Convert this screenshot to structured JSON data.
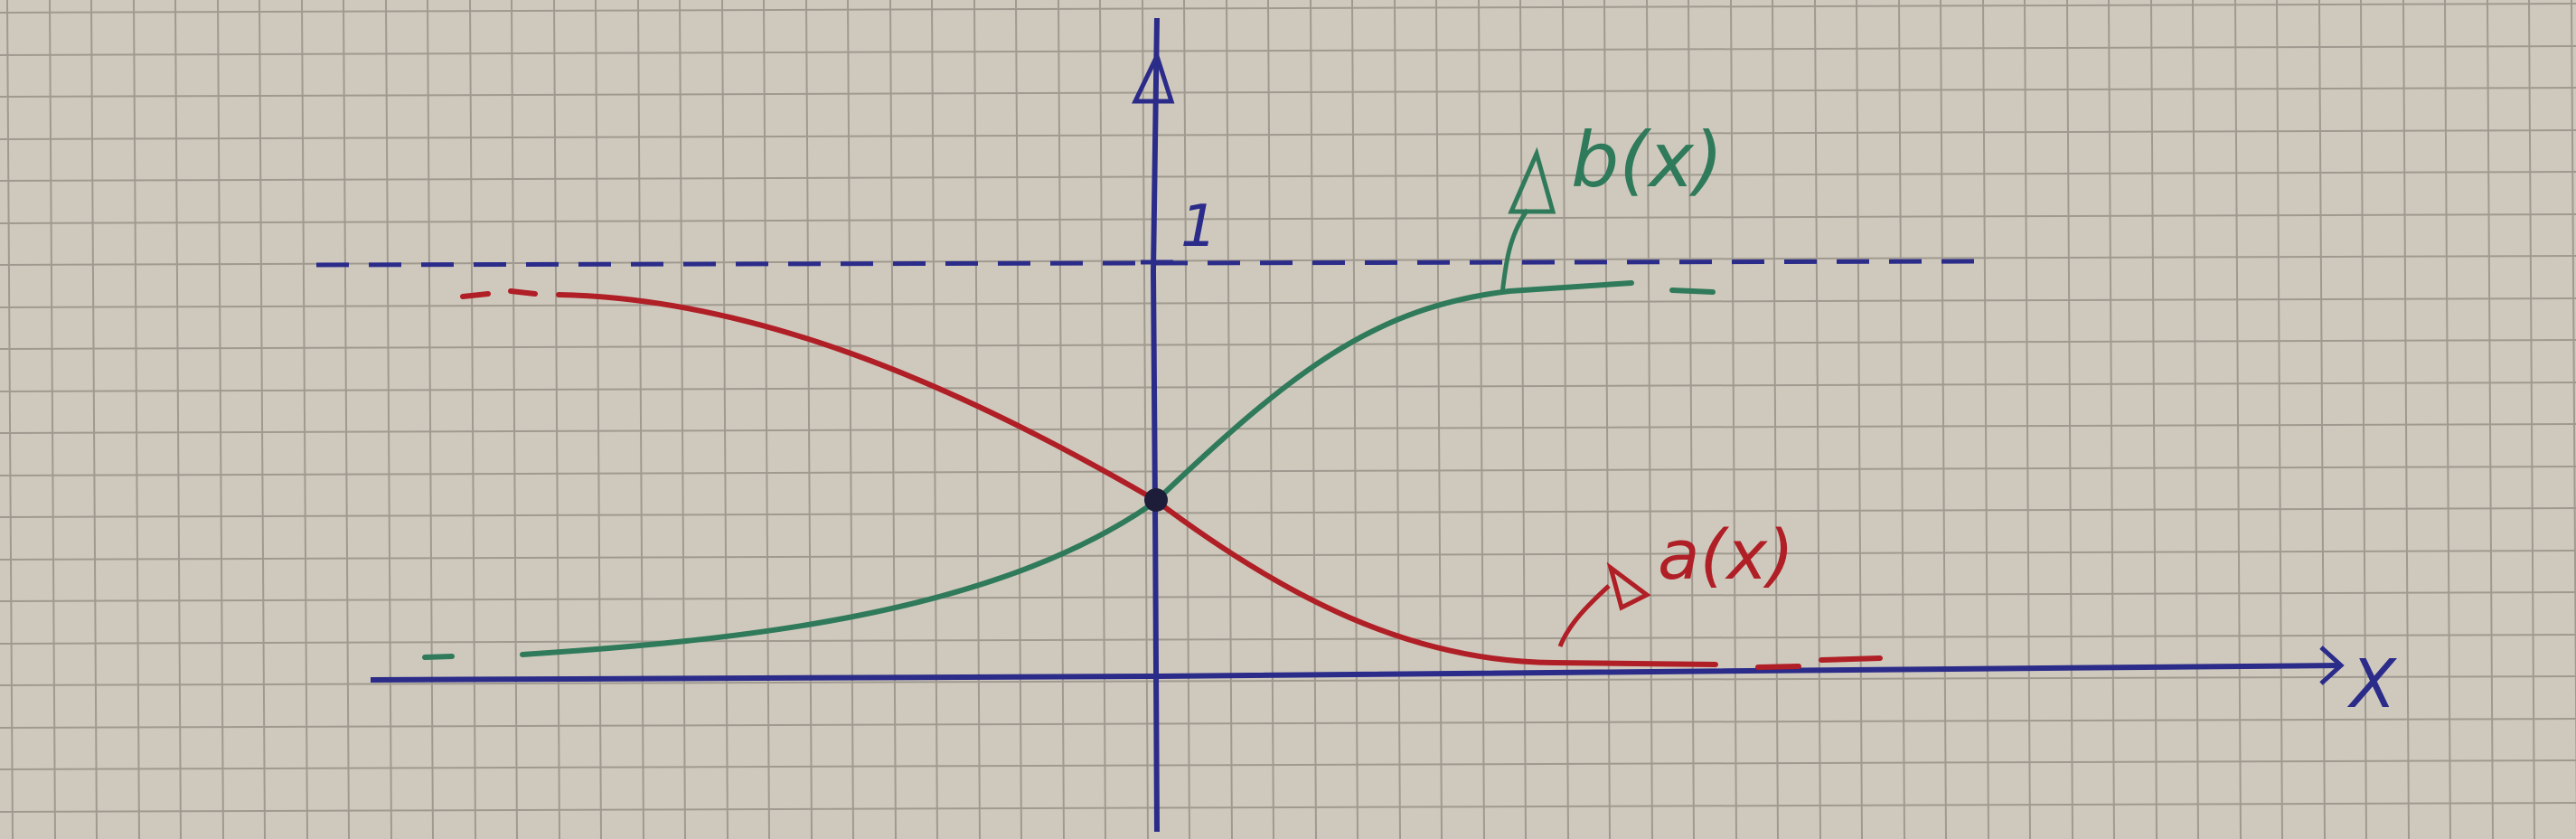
{
  "figure": {
    "x_axis_label": "X",
    "y_tick_label": "1",
    "curve_green_label": "b(x)",
    "curve_red_label": "a(x)"
  },
  "colors": {
    "paper": "#cfc9bd",
    "grid": "#8f8a80",
    "axis": "#2b2b8a",
    "green": "#2f7a5a",
    "red": "#b01e26",
    "dash": "#2b2b8a"
  }
}
